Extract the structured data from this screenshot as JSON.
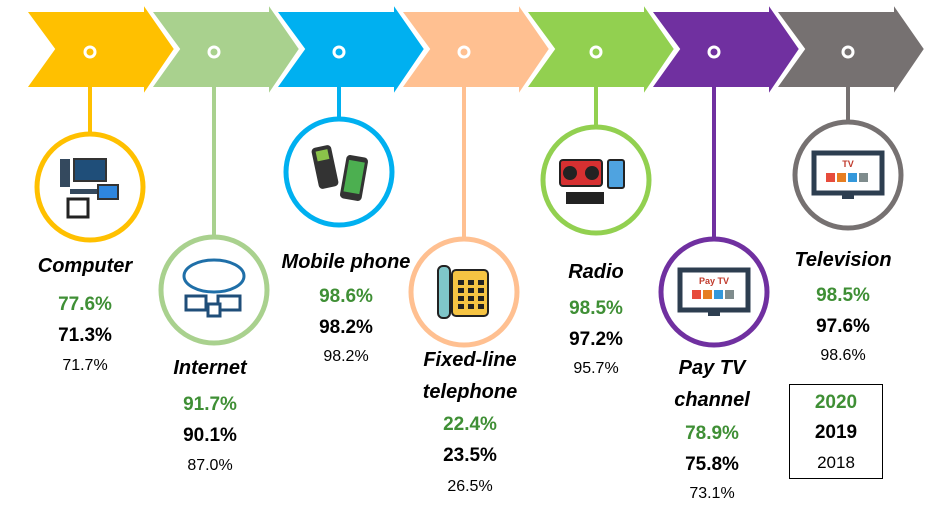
{
  "items": [
    {
      "label": "Computer",
      "color": "#FFC000",
      "icon": "computer-icon",
      "v2020": "77.6%",
      "v2019": "71.3%",
      "v2018": "71.7%"
    },
    {
      "label": "Internet",
      "color": "#A9D18E",
      "icon": "cloud-network-icon",
      "v2020": "91.7%",
      "v2019": "90.1%",
      "v2018": "87.0%"
    },
    {
      "label": "Mobile phone",
      "color": "#00B0F0",
      "icon": "mobile-phone-icon",
      "v2020": "98.6%",
      "v2019": "98.2%",
      "v2018": "98.2%"
    },
    {
      "label": "Fixed-line telephone",
      "label_line1": "Fixed-line",
      "label_line2": "telephone",
      "color": "#FFC091",
      "icon": "telephone-icon",
      "v2020": "22.4%",
      "v2019": "23.5%",
      "v2018": "26.5%"
    },
    {
      "label": "Radio",
      "color": "#92D050",
      "icon": "radio-icon",
      "v2020": "98.5%",
      "v2019": "97.2%",
      "v2018": "95.7%"
    },
    {
      "label": "Pay TV channel",
      "label_line1": "Pay TV",
      "label_line2": "channel",
      "color": "#7030A0",
      "icon": "pay-tv-icon",
      "icon_text": "Pay TV",
      "v2020": "78.9%",
      "v2019": "75.8%",
      "v2018": "73.1%"
    },
    {
      "label": "Television",
      "color": "#767171",
      "icon": "television-icon",
      "icon_text": "TV",
      "v2020": "98.5%",
      "v2019": "97.6%",
      "v2018": "98.6%"
    }
  ],
  "legend": {
    "y2020": "2020",
    "y2019": "2019",
    "y2018": "2018",
    "color_2020": "#3F8F35",
    "color_2019": "#000000",
    "color_2018": "#000000"
  }
}
